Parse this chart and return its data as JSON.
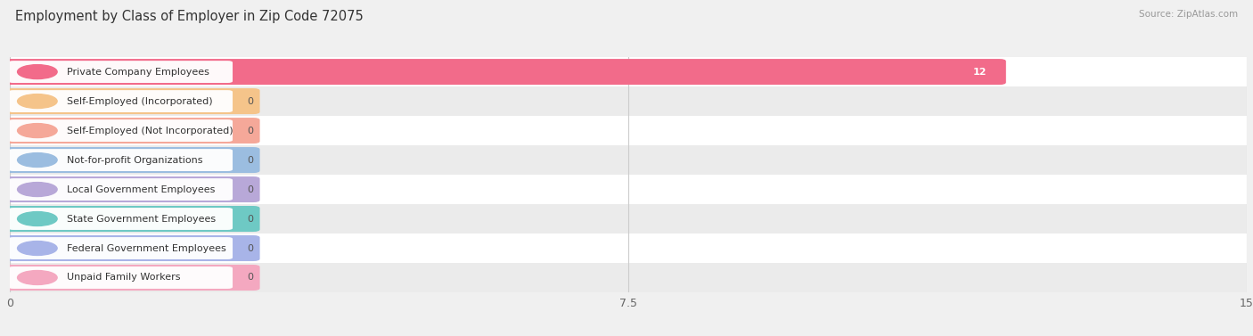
{
  "title": "Employment by Class of Employer in Zip Code 72075",
  "source": "Source: ZipAtlas.com",
  "categories": [
    "Private Company Employees",
    "Self-Employed (Incorporated)",
    "Self-Employed (Not Incorporated)",
    "Not-for-profit Organizations",
    "Local Government Employees",
    "State Government Employees",
    "Federal Government Employees",
    "Unpaid Family Workers"
  ],
  "values": [
    12,
    0,
    0,
    0,
    0,
    0,
    0,
    0
  ],
  "bar_colors": [
    "#f26b8a",
    "#f5c48a",
    "#f5a899",
    "#9bbde0",
    "#b8a8d8",
    "#6ec9c4",
    "#a8b4e8",
    "#f4a8c0"
  ],
  "xlim": [
    0,
    15
  ],
  "xticks": [
    0,
    7.5,
    15
  ],
  "background_color": "#f0f0f0",
  "row_bg_colors": [
    "#ffffff",
    "#ebebeb"
  ],
  "title_fontsize": 10.5,
  "bar_height": 0.72,
  "value_fontsize": 8,
  "label_fontsize": 8,
  "value_label_color": "#555555",
  "grid_color": "#cccccc"
}
